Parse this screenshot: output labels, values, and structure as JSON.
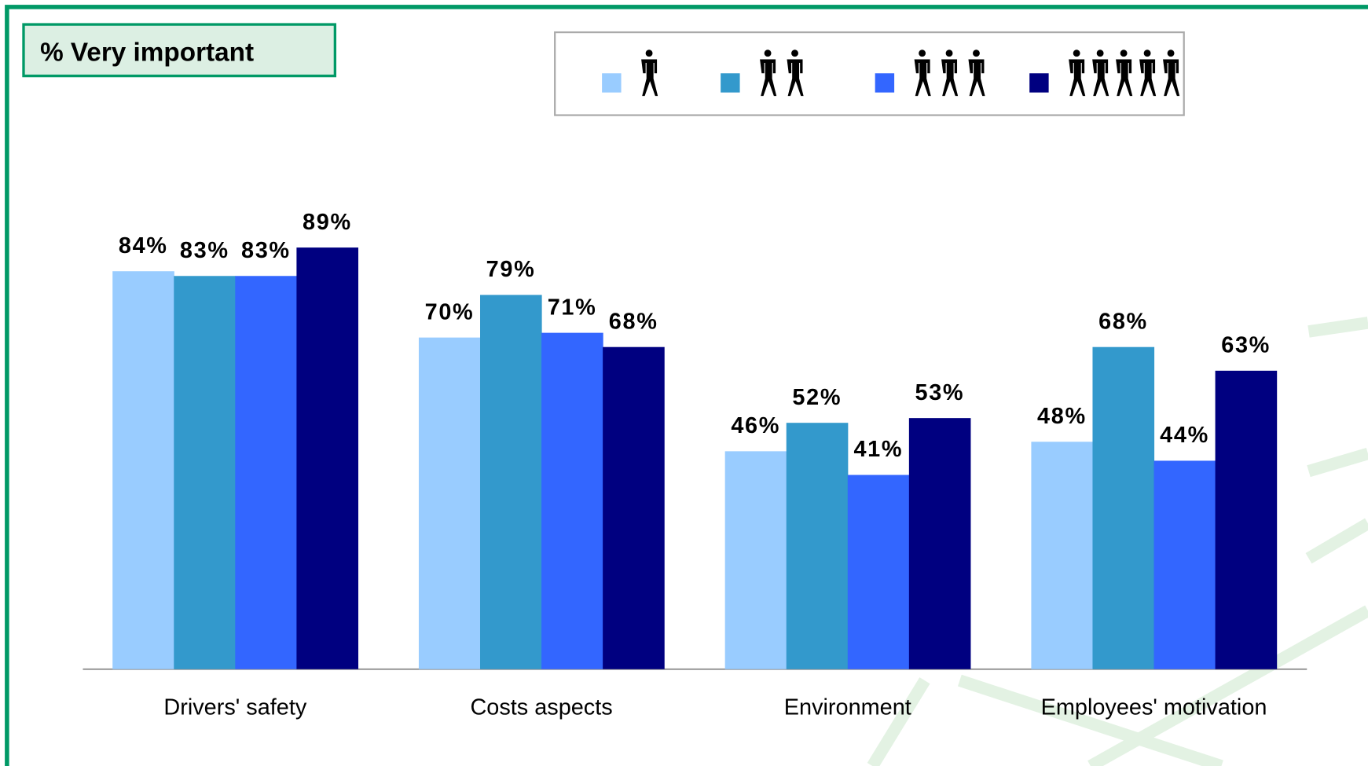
{
  "chart_data": {
    "type": "bar",
    "title": "% Very important",
    "categories": [
      "Drivers' safety",
      "Costs aspects",
      "Environment",
      "Employees' motivation"
    ],
    "series": [
      {
        "color": "#99ccff",
        "values": [
          84,
          70,
          46,
          48
        ],
        "value_labels": [
          "84%",
          "70%",
          "46%",
          "48%"
        ]
      },
      {
        "color": "#3399cc",
        "values": [
          83,
          79,
          52,
          68
        ],
        "value_labels": [
          "83%",
          "79%",
          "52%",
          "68%"
        ]
      },
      {
        "color": "#3366ff",
        "values": [
          83,
          71,
          41,
          44
        ],
        "value_labels": [
          "83%",
          "71%",
          "41%",
          "44%"
        ]
      },
      {
        "color": "#000080",
        "values": [
          89,
          68,
          53,
          63
        ],
        "value_labels": [
          "89%",
          "68%",
          "53%",
          "63%"
        ]
      }
    ],
    "ylim": [
      0,
      100
    ]
  }
}
